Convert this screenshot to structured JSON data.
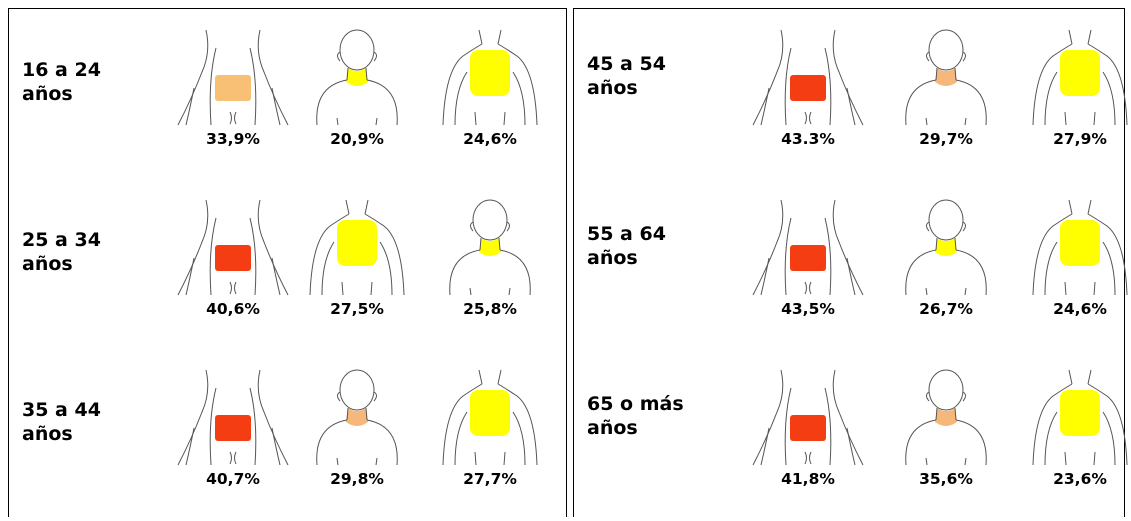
{
  "panels": [
    {
      "rows": [
        {
          "label": [
            "16 a 24",
            "años"
          ],
          "values": [
            "33,9%",
            "20,9%",
            "24,6%"
          ]
        },
        {
          "label": [
            "25 a 34",
            "años"
          ],
          "values": [
            "40,6%",
            "27,5%",
            "25,8%"
          ]
        },
        {
          "label": [
            "35 a 44",
            "años"
          ],
          "values": [
            "40,7%",
            "29,8%",
            "27,7%"
          ]
        }
      ]
    },
    {
      "rows": [
        {
          "label": [
            "45 a 54",
            "años"
          ],
          "values": [
            "43.3%",
            "29,7%",
            "27,9%"
          ]
        },
        {
          "label": [
            "55 a 64",
            "años"
          ],
          "values": [
            "43,5%",
            "26,7%",
            "24,6%"
          ]
        },
        {
          "label": [
            "65 o más",
            "años"
          ],
          "values": [
            "41,8%",
            "35,6%",
            "23,6%"
          ]
        }
      ]
    }
  ]
}
